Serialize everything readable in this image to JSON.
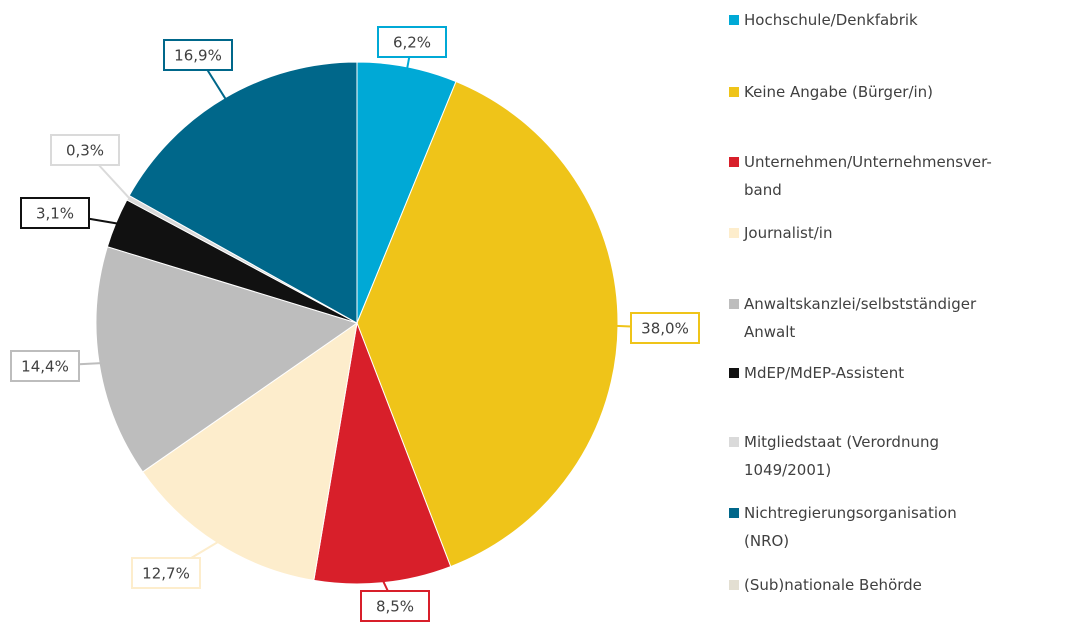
{
  "chart_data": {
    "type": "pie",
    "categories": [
      "Hochschule/Denkfabrik",
      "Keine Angabe (Bürger/in)",
      "Unternehmen/Unternehmensver-\nband",
      "Journalist/in",
      "Anwaltskanzlei/selbstständiger\nAnwalt",
      "MdEP/MdEP-Assistent",
      "Mitgliedstaat (Verordnung\n1049/2001)",
      "Nichtregierungsorganisation\n(NRO)",
      "(Sub)nationale Behörde"
    ],
    "values": [
      6.2,
      38.0,
      8.5,
      12.7,
      14.4,
      3.1,
      0.3,
      16.9,
      0
    ],
    "value_labels": [
      "6,2%",
      "38,0%",
      "8,5%",
      "12,7%",
      "14,4%",
      "3,1%",
      "0,3%",
      "16,9%",
      null
    ],
    "colors": [
      "#00a9d6",
      "#efc419",
      "#d81f2a",
      "#fdedcc",
      "#bdbdbd",
      "#111111",
      "#dadada",
      "#00678a",
      "#e3dfd2"
    ],
    "legend": "right"
  }
}
